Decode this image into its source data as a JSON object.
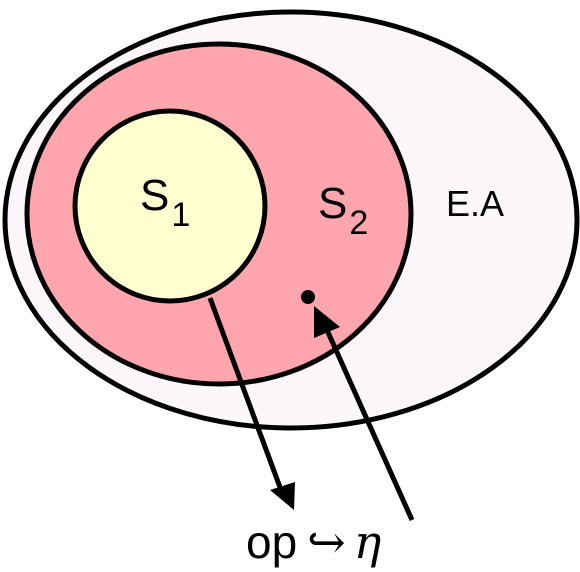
{
  "sets": {
    "s1": {
      "letter": "S",
      "index": "1",
      "fill": "#ffffd0"
    },
    "s2": {
      "letter": "S",
      "index": "2",
      "fill": "#ffa5ad"
    },
    "outer": {
      "label": "E.A",
      "fill": "#fcf7fa"
    }
  },
  "formula": {
    "left": "op",
    "arrow": "↪",
    "right": "η"
  },
  "colors": {
    "stroke": "#000000",
    "background": "#ffffff"
  }
}
